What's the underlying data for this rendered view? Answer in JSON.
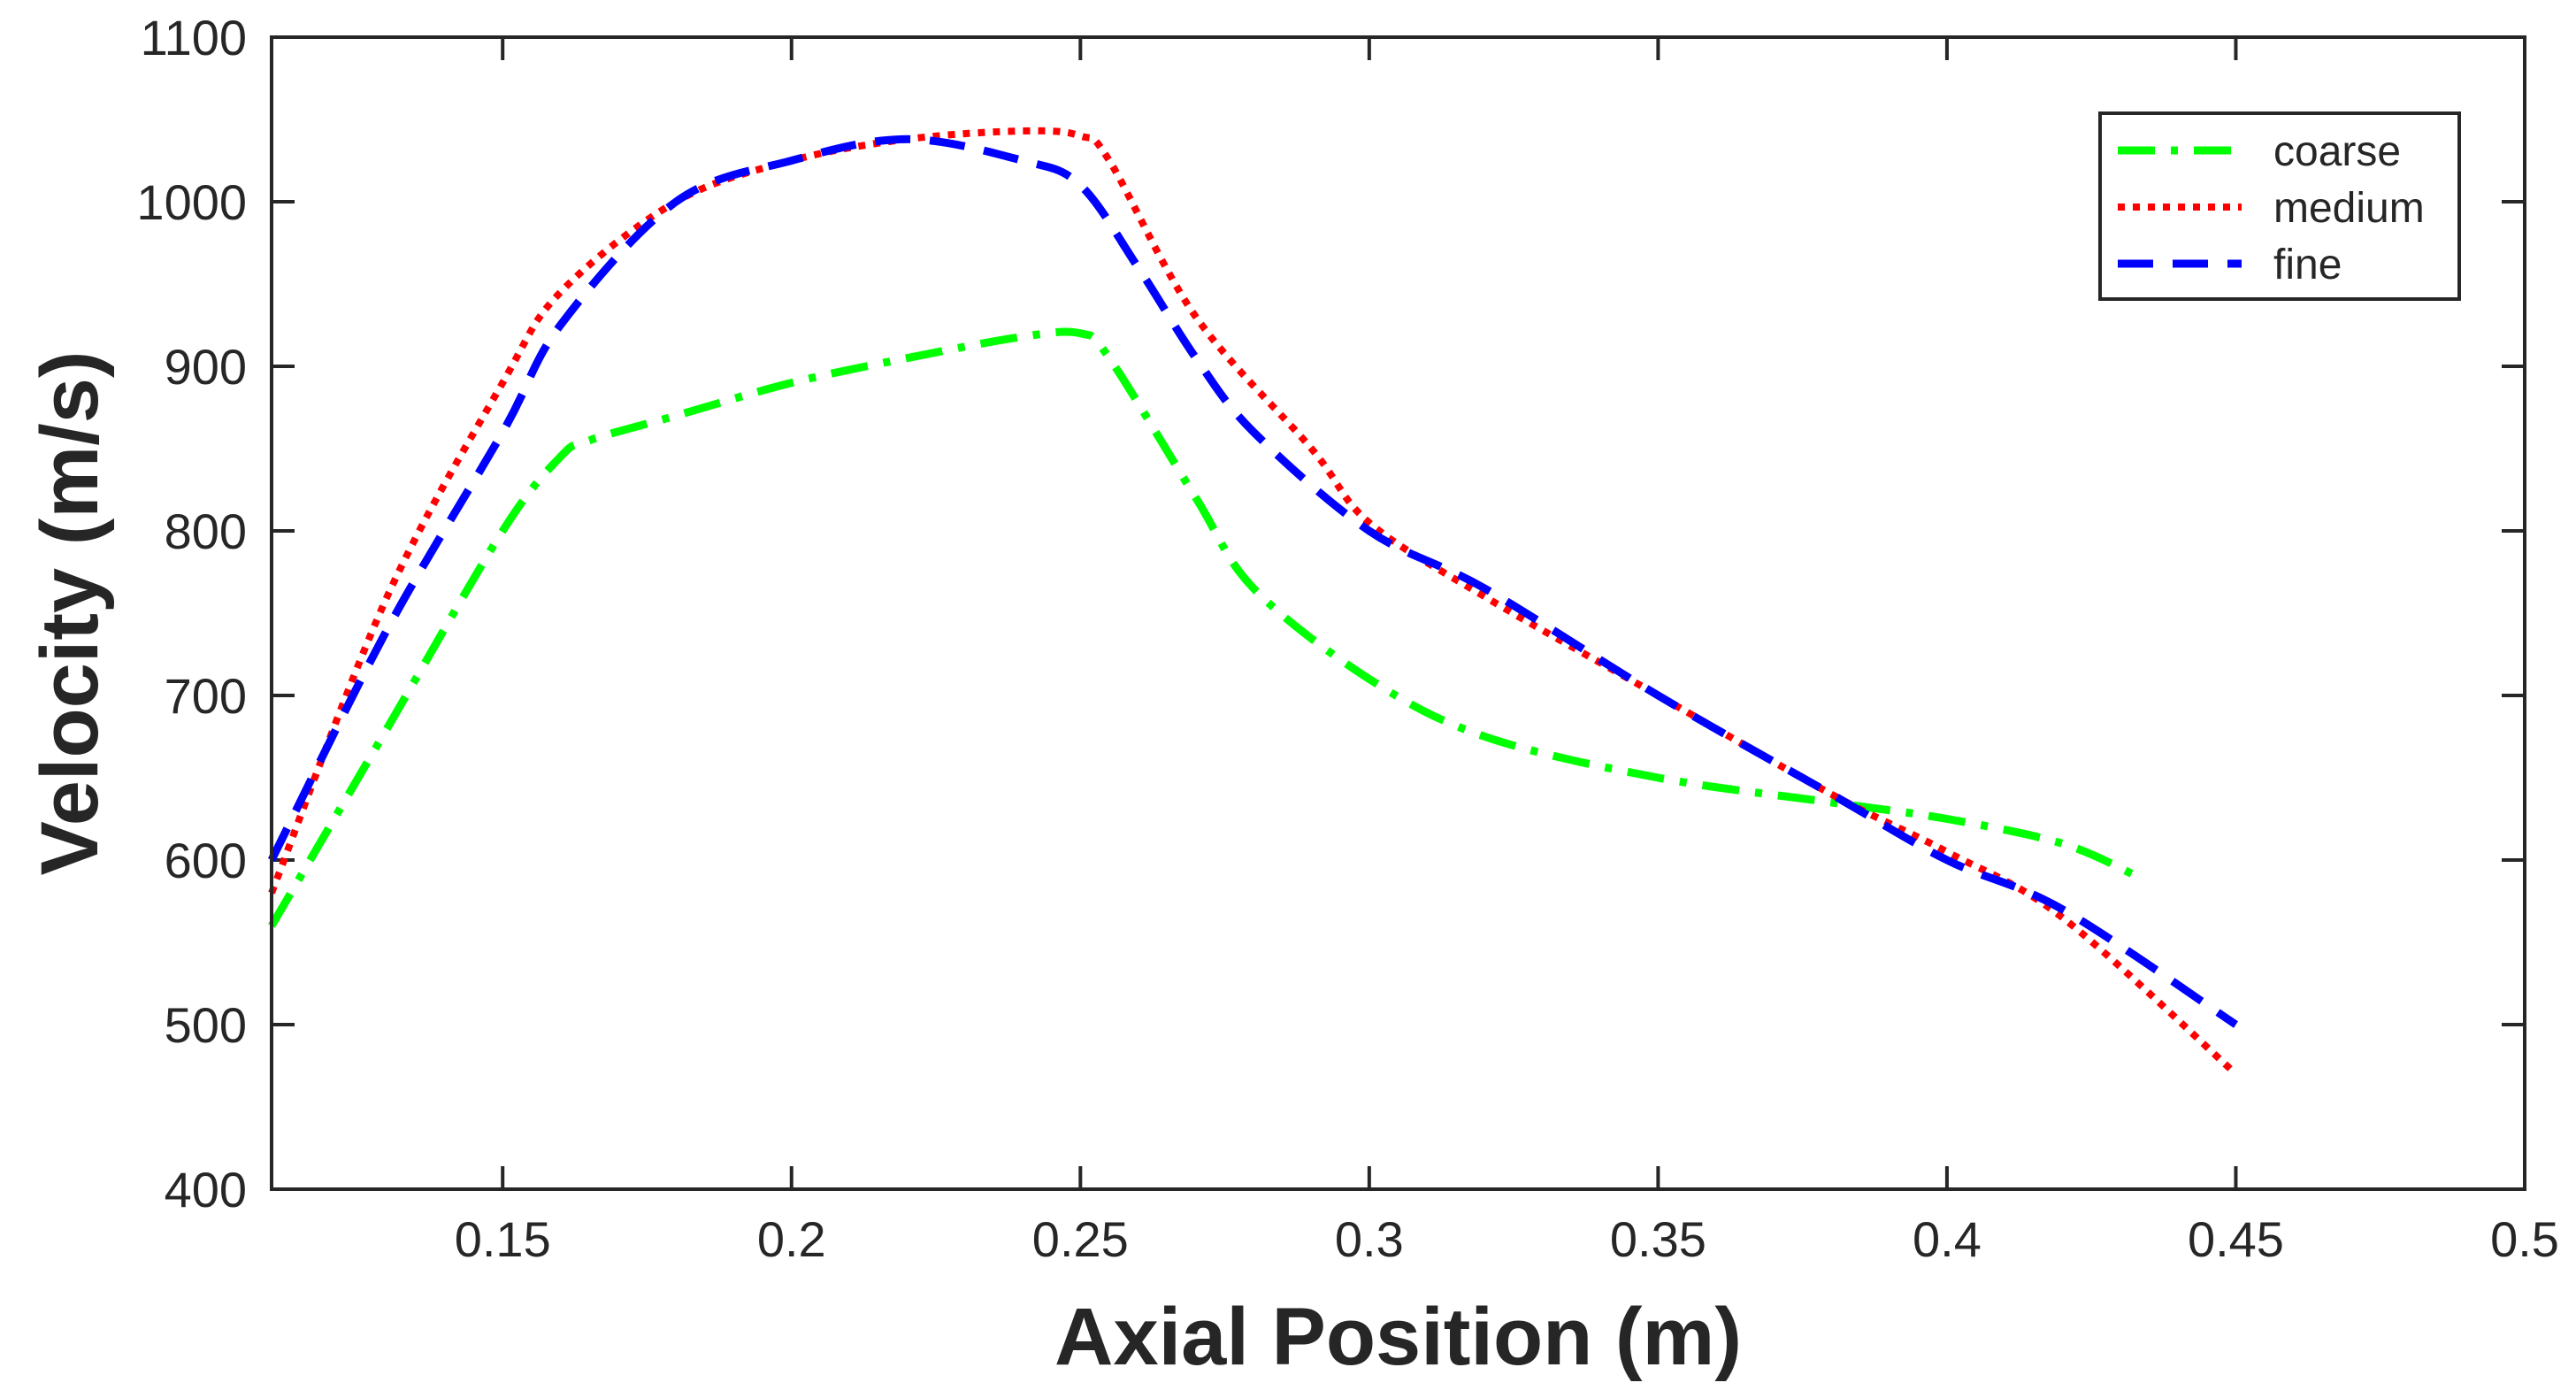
{
  "chart_data": {
    "type": "line",
    "title": "",
    "xlabel": "Axial Position (m)",
    "ylabel": "Velocity (m/s)",
    "xlim": [
      0.11,
      0.5
    ],
    "ylim": [
      400,
      1100
    ],
    "xticks": [
      0.15,
      0.2,
      0.25,
      0.3,
      0.35,
      0.4,
      0.45,
      0.5
    ],
    "xtick_labels": [
      "0.15",
      "0.2",
      "0.25",
      "0.3",
      "0.35",
      "0.4",
      "0.45",
      "0.5"
    ],
    "yticks": [
      400,
      500,
      600,
      700,
      800,
      900,
      1000,
      1100
    ],
    "ytick_labels": [
      "400",
      "500",
      "600",
      "700",
      "800",
      "900",
      "1000",
      "1100"
    ],
    "grid": false,
    "legend_position": "top-right",
    "series": [
      {
        "name": "coarse",
        "color": "#00ff00",
        "dash": "dash-dot",
        "x": [
          0.11,
          0.13,
          0.15,
          0.16,
          0.165,
          0.18,
          0.2,
          0.22,
          0.24,
          0.25,
          0.255,
          0.27,
          0.28,
          0.3,
          0.32,
          0.35,
          0.38,
          0.4,
          0.42,
          0.433
        ],
        "y": [
          560,
          680,
          800,
          845,
          855,
          870,
          890,
          905,
          918,
          920,
          905,
          820,
          765,
          710,
          675,
          650,
          635,
          625,
          610,
          590
        ]
      },
      {
        "name": "medium",
        "color": "#ff0000",
        "dash": "dotted",
        "x": [
          0.11,
          0.13,
          0.15,
          0.16,
          0.18,
          0.2,
          0.22,
          0.24,
          0.25,
          0.255,
          0.27,
          0.29,
          0.3,
          0.32,
          0.35,
          0.38,
          0.4,
          0.42,
          0.45
        ],
        "y": [
          580,
          760,
          890,
          945,
          1000,
          1025,
          1038,
          1043,
          1040,
          1025,
          930,
          850,
          805,
          760,
          700,
          640,
          605,
          565,
          470
        ]
      },
      {
        "name": "fine",
        "color": "#0000ff",
        "dash": "dashed",
        "x": [
          0.11,
          0.13,
          0.15,
          0.16,
          0.18,
          0.2,
          0.22,
          0.24,
          0.25,
          0.26,
          0.27,
          0.28,
          0.3,
          0.32,
          0.35,
          0.38,
          0.4,
          0.42,
          0.45
        ],
        "y": [
          600,
          740,
          860,
          925,
          1000,
          1025,
          1038,
          1025,
          1010,
          960,
          905,
          860,
          800,
          765,
          700,
          640,
          600,
          570,
          500
        ]
      }
    ]
  }
}
